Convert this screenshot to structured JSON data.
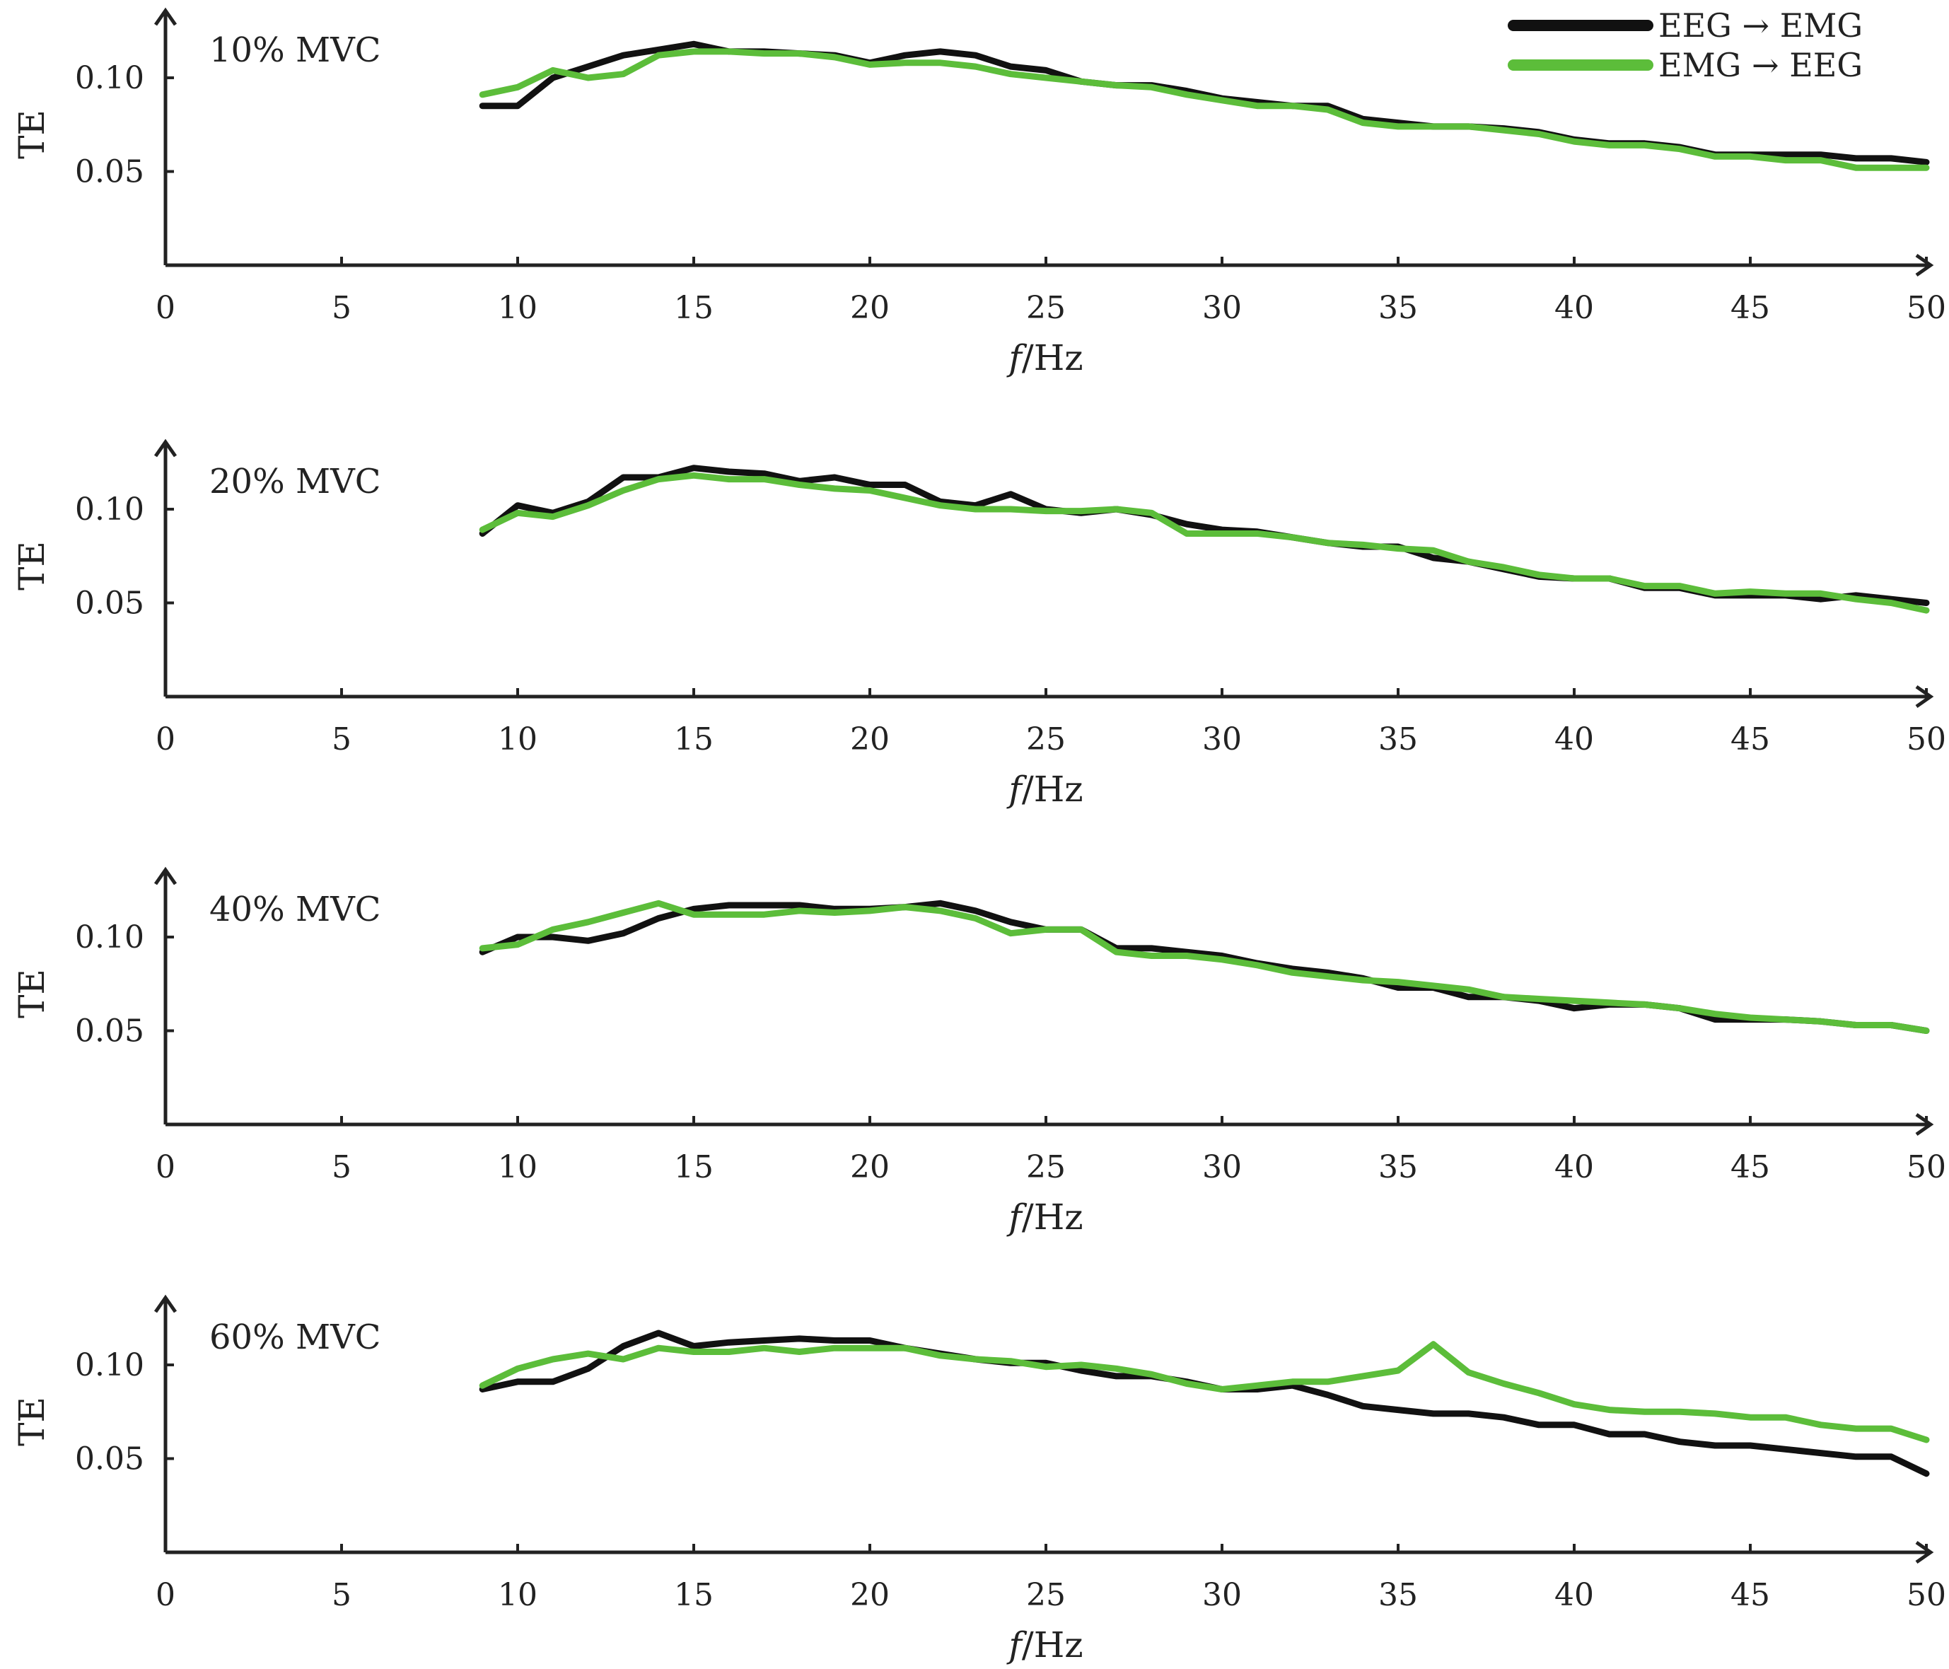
{
  "legend": [
    {
      "name": "EEG → EMG",
      "color": "#111111"
    },
    {
      "name": "EMG → EEG",
      "color": "#5cbd3a"
    }
  ],
  "x_axis_title": "f/Hz",
  "y_axis_title": "TE",
  "x_ticks": [
    0,
    5,
    10,
    15,
    20,
    25,
    30,
    35,
    40,
    45,
    50
  ],
  "y_ticks": [
    "0.10",
    "0.05"
  ],
  "chart_data": [
    {
      "type": "line",
      "title": "10% MVC",
      "xlabel": "f/Hz",
      "ylabel": "TE",
      "xlim": [
        0,
        50
      ],
      "ylim": [
        0,
        0.13
      ],
      "x": [
        9,
        10,
        11,
        12,
        13,
        14,
        15,
        16,
        17,
        18,
        19,
        20,
        21,
        22,
        23,
        24,
        25,
        26,
        27,
        28,
        29,
        30,
        31,
        32,
        33,
        34,
        35,
        36,
        37,
        38,
        39,
        40,
        41,
        42,
        43,
        44,
        45,
        46,
        47,
        48,
        49,
        50
      ],
      "series": [
        {
          "name": "EEG → EMG",
          "values": [
            0.085,
            0.085,
            0.1,
            0.106,
            0.112,
            0.115,
            0.118,
            0.114,
            0.114,
            0.113,
            0.112,
            0.108,
            0.112,
            0.114,
            0.112,
            0.106,
            0.104,
            0.098,
            0.096,
            0.096,
            0.093,
            0.089,
            0.087,
            0.085,
            0.085,
            0.078,
            0.076,
            0.074,
            0.074,
            0.073,
            0.071,
            0.067,
            0.065,
            0.065,
            0.063,
            0.059,
            0.059,
            0.059,
            0.059,
            0.057,
            0.057,
            0.055
          ]
        },
        {
          "name": "EMG → EEG",
          "values": [
            0.091,
            0.095,
            0.104,
            0.1,
            0.102,
            0.112,
            0.114,
            0.114,
            0.113,
            0.113,
            0.111,
            0.107,
            0.108,
            0.108,
            0.106,
            0.102,
            0.1,
            0.098,
            0.096,
            0.095,
            0.091,
            0.088,
            0.085,
            0.085,
            0.083,
            0.076,
            0.074,
            0.074,
            0.074,
            0.072,
            0.07,
            0.066,
            0.064,
            0.064,
            0.062,
            0.058,
            0.058,
            0.056,
            0.056,
            0.052,
            0.052,
            0.052
          ]
        }
      ]
    },
    {
      "type": "line",
      "title": "20% MVC",
      "xlabel": "f/Hz",
      "ylabel": "TE",
      "xlim": [
        0,
        50
      ],
      "ylim": [
        0,
        0.13
      ],
      "x": [
        9,
        10,
        11,
        12,
        13,
        14,
        15,
        16,
        17,
        18,
        19,
        20,
        21,
        22,
        23,
        24,
        25,
        26,
        27,
        28,
        29,
        30,
        31,
        32,
        33,
        34,
        35,
        36,
        37,
        38,
        39,
        40,
        41,
        42,
        43,
        44,
        45,
        46,
        47,
        48,
        49,
        50
      ],
      "series": [
        {
          "name": "EEG → EMG",
          "values": [
            0.087,
            0.102,
            0.098,
            0.104,
            0.117,
            0.117,
            0.122,
            0.12,
            0.119,
            0.115,
            0.117,
            0.113,
            0.113,
            0.104,
            0.102,
            0.108,
            0.1,
            0.098,
            0.1,
            0.097,
            0.092,
            0.089,
            0.088,
            0.085,
            0.082,
            0.08,
            0.08,
            0.074,
            0.072,
            0.068,
            0.064,
            0.063,
            0.063,
            0.058,
            0.058,
            0.054,
            0.054,
            0.054,
            0.052,
            0.054,
            0.052,
            0.05
          ]
        },
        {
          "name": "EMG → EEG",
          "values": [
            0.089,
            0.098,
            0.096,
            0.102,
            0.11,
            0.116,
            0.118,
            0.116,
            0.116,
            0.113,
            0.111,
            0.11,
            0.106,
            0.102,
            0.1,
            0.1,
            0.099,
            0.099,
            0.1,
            0.098,
            0.087,
            0.087,
            0.087,
            0.085,
            0.082,
            0.081,
            0.079,
            0.078,
            0.072,
            0.069,
            0.065,
            0.063,
            0.063,
            0.059,
            0.059,
            0.055,
            0.056,
            0.055,
            0.055,
            0.052,
            0.05,
            0.046
          ]
        }
      ]
    },
    {
      "type": "line",
      "title": "40% MVC",
      "xlabel": "f/Hz",
      "ylabel": "TE",
      "xlim": [
        0,
        50
      ],
      "ylim": [
        0,
        0.13
      ],
      "x": [
        9,
        10,
        11,
        12,
        13,
        14,
        15,
        16,
        17,
        18,
        19,
        20,
        21,
        22,
        23,
        24,
        25,
        26,
        27,
        28,
        29,
        30,
        31,
        32,
        33,
        34,
        35,
        36,
        37,
        38,
        39,
        40,
        41,
        42,
        43,
        44,
        45,
        46,
        47,
        48,
        49,
        50
      ],
      "series": [
        {
          "name": "EEG → EMG",
          "values": [
            0.092,
            0.1,
            0.1,
            0.098,
            0.102,
            0.11,
            0.115,
            0.117,
            0.117,
            0.117,
            0.115,
            0.115,
            0.116,
            0.118,
            0.114,
            0.108,
            0.104,
            0.104,
            0.094,
            0.094,
            0.092,
            0.09,
            0.086,
            0.083,
            0.081,
            0.078,
            0.073,
            0.073,
            0.068,
            0.068,
            0.066,
            0.062,
            0.064,
            0.064,
            0.062,
            0.056,
            0.056,
            0.056,
            0.055,
            0.053,
            0.053,
            0.05
          ]
        },
        {
          "name": "EMG → EEG",
          "values": [
            0.094,
            0.096,
            0.104,
            0.108,
            0.113,
            0.118,
            0.112,
            0.112,
            0.112,
            0.114,
            0.113,
            0.114,
            0.116,
            0.114,
            0.11,
            0.102,
            0.104,
            0.104,
            0.092,
            0.09,
            0.09,
            0.088,
            0.085,
            0.081,
            0.079,
            0.077,
            0.076,
            0.074,
            0.072,
            0.068,
            0.067,
            0.066,
            0.065,
            0.064,
            0.062,
            0.059,
            0.057,
            0.056,
            0.055,
            0.053,
            0.053,
            0.05
          ]
        }
      ]
    },
    {
      "type": "line",
      "title": "60% MVC",
      "xlabel": "f/Hz",
      "ylabel": "TE",
      "xlim": [
        0,
        50
      ],
      "ylim": [
        0,
        0.13
      ],
      "x": [
        9,
        10,
        11,
        12,
        13,
        14,
        15,
        16,
        17,
        18,
        19,
        20,
        21,
        22,
        23,
        24,
        25,
        26,
        27,
        28,
        29,
        30,
        31,
        32,
        33,
        34,
        35,
        36,
        37,
        38,
        39,
        40,
        41,
        42,
        43,
        44,
        45,
        46,
        47,
        48,
        49,
        50
      ],
      "series": [
        {
          "name": "EEG → EMG",
          "values": [
            0.087,
            0.091,
            0.091,
            0.098,
            0.11,
            0.117,
            0.11,
            0.112,
            0.113,
            0.114,
            0.113,
            0.113,
            0.109,
            0.106,
            0.103,
            0.101,
            0.101,
            0.097,
            0.094,
            0.094,
            0.091,
            0.087,
            0.087,
            0.089,
            0.084,
            0.078,
            0.076,
            0.074,
            0.074,
            0.072,
            0.068,
            0.068,
            0.063,
            0.063,
            0.059,
            0.057,
            0.057,
            0.055,
            0.053,
            0.051,
            0.051,
            0.042
          ]
        },
        {
          "name": "EMG → EEG",
          "values": [
            0.089,
            0.098,
            0.103,
            0.106,
            0.103,
            0.109,
            0.107,
            0.107,
            0.109,
            0.107,
            0.109,
            0.109,
            0.109,
            0.105,
            0.103,
            0.102,
            0.099,
            0.1,
            0.098,
            0.095,
            0.09,
            0.087,
            0.089,
            0.091,
            0.091,
            0.094,
            0.097,
            0.111,
            0.096,
            0.09,
            0.085,
            0.079,
            0.076,
            0.075,
            0.075,
            0.074,
            0.072,
            0.072,
            0.068,
            0.066,
            0.066,
            0.06
          ]
        }
      ]
    }
  ]
}
